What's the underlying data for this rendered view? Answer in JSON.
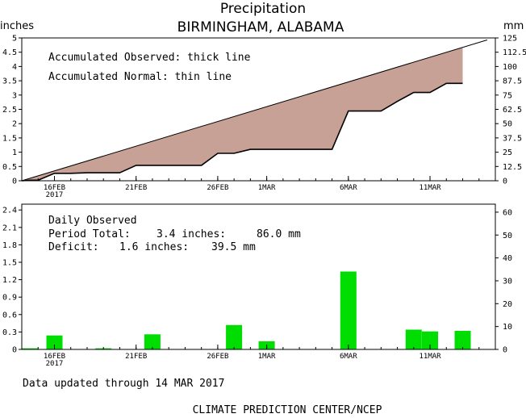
{
  "title": "Precipitation",
  "subtitle": "BIRMINGHAM, ALABAMA",
  "left_unit": "inches",
  "right_unit": "mm",
  "legend": {
    "observed": "Accumulated Observed: thick line",
    "normal": "Accumulated Normal: thin line"
  },
  "daily": {
    "title": "Daily Observed",
    "period_label": "Period Total:",
    "period_in": "3.4 inches:",
    "period_mm": "86.0 mm",
    "deficit_label": "Deficit:",
    "deficit_in": "1.6 inches:",
    "deficit_mm": "39.5 mm"
  },
  "footer": {
    "updated": "Data updated through 14 MAR 2017",
    "credit": "CLIMATE PREDICTION CENTER/NCEP"
  },
  "colors": {
    "fill": "#c8a196",
    "bar": "#00dd00",
    "line": "#000000"
  },
  "chart_data": [
    {
      "type": "area",
      "x_label_ticks": [
        {
          "day": 2,
          "label": "16FEB",
          "label2": "2017"
        },
        {
          "day": 7,
          "label": "21FEB"
        },
        {
          "day": 12,
          "label": "26FEB"
        },
        {
          "day": 15,
          "label": "1MAR"
        },
        {
          "day": 20,
          "label": "6MAR"
        },
        {
          "day": 25,
          "label": "11MAR"
        }
      ],
      "xlim": [
        0,
        29
      ],
      "ylim": [
        0,
        5
      ],
      "y_ticks": [
        "0",
        "0.5",
        "1",
        "1.5",
        "2",
        "2.5",
        "3",
        "3.5",
        "4",
        "4.5",
        "5"
      ],
      "y2_ticks": [
        "0",
        "12.5",
        "25",
        "37.5",
        "50",
        "62.5",
        "75",
        "87.5",
        "100",
        "112.5",
        "125"
      ],
      "series": [
        {
          "name": "Accumulated Normal",
          "points": [
            [
              0,
              0
            ],
            [
              28.5,
              4.93
            ]
          ]
        },
        {
          "name": "Accumulated Observed",
          "points": [
            [
              0,
              0
            ],
            [
              0.5,
              0.02
            ],
            [
              1,
              0.02
            ],
            [
              2,
              0.26
            ],
            [
              3,
              0.26
            ],
            [
              4,
              0.28
            ],
            [
              5,
              0.28
            ],
            [
              6,
              0.28
            ],
            [
              7,
              0.54
            ],
            [
              8,
              0.54
            ],
            [
              9,
              0.54
            ],
            [
              10,
              0.54
            ],
            [
              11,
              0.54
            ],
            [
              12,
              0.96
            ],
            [
              13,
              0.96
            ],
            [
              14,
              1.1
            ],
            [
              15,
              1.1
            ],
            [
              16,
              1.1
            ],
            [
              17,
              1.1
            ],
            [
              18,
              1.1
            ],
            [
              19,
              1.1
            ],
            [
              20,
              2.44
            ],
            [
              21,
              2.44
            ],
            [
              22,
              2.44
            ],
            [
              23,
              2.78
            ],
            [
              24,
              3.09
            ],
            [
              25,
              3.09
            ],
            [
              26,
              3.41
            ],
            [
              27,
              3.41
            ]
          ]
        }
      ]
    },
    {
      "type": "bar",
      "days": [
        0.5,
        2,
        5,
        8,
        13,
        15,
        20,
        24,
        25,
        27
      ],
      "values": [
        0.02,
        0.24,
        0.02,
        0.26,
        0.42,
        0.14,
        1.34,
        0.34,
        0.31,
        0.32
      ],
      "xlim": [
        0,
        29
      ],
      "ylim": [
        0,
        2.5
      ],
      "y_ticks": [
        "0",
        "0.3",
        "0.6",
        "0.9",
        "1.2",
        "1.5",
        "1.8",
        "2.1",
        "2.4"
      ],
      "y2_ticks": [
        "0",
        "10",
        "20",
        "30",
        "40",
        "50",
        "60"
      ]
    }
  ]
}
